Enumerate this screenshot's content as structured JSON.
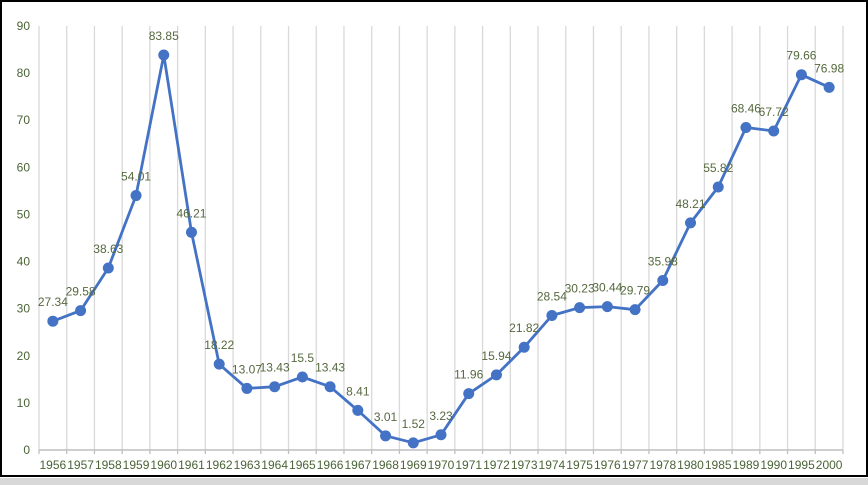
{
  "window": {
    "background": "#ffffff",
    "border_color": "#000000",
    "bottom_strip_color": "#d8d8d8"
  },
  "chart_data": {
    "type": "line",
    "title": "",
    "xlabel": "",
    "ylabel": "",
    "categories": [
      "1956",
      "1957",
      "1958",
      "1959",
      "1960",
      "1961",
      "1962",
      "1963",
      "1964",
      "1965",
      "1966",
      "1967",
      "1968",
      "1969",
      "1970",
      "1971",
      "1972",
      "1973",
      "1974",
      "1975",
      "1976",
      "1977",
      "1978",
      "1980",
      "1985",
      "1989",
      "1990",
      "1995",
      "2000"
    ],
    "values": [
      27.34,
      29.58,
      38.63,
      54.01,
      83.85,
      46.21,
      18.22,
      13.07,
      13.43,
      15.5,
      13.43,
      8.41,
      3.01,
      1.52,
      3.23,
      11.96,
      15.94,
      21.82,
      28.54,
      30.23,
      30.44,
      29.79,
      35.98,
      48.21,
      55.82,
      68.46,
      67.72,
      79.66,
      76.98
    ],
    "data_labels_visible": true,
    "y_ticks": [
      0,
      10,
      20,
      30,
      40,
      50,
      60,
      70,
      80,
      90
    ],
    "ylim": [
      0,
      90
    ],
    "grid": "vertical-only",
    "legend": "none",
    "marker": "circle",
    "colors": {
      "series_line": "#4472C4",
      "marker_fill": "#4472C4",
      "data_label": "#55683E",
      "axis_label": "#4A6336",
      "gridline": "#D9D9D9",
      "axis_line": "#BFBFBF"
    }
  }
}
